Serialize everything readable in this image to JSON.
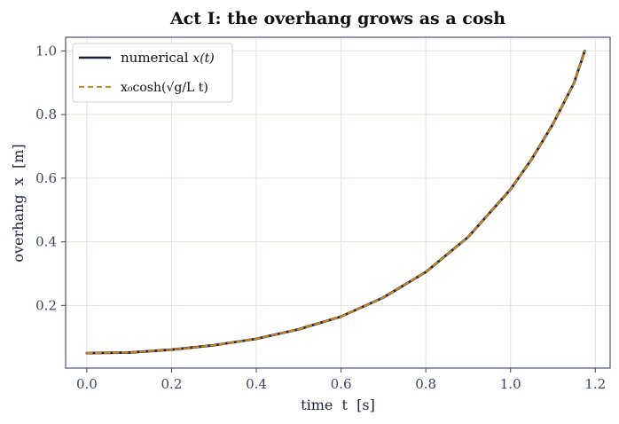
{
  "chart_data": {
    "type": "line",
    "title": "Act I: the overhang grows as a cosh",
    "xlabel": "time  t  [s]",
    "ylabel": "overhang  x  [m]",
    "xlim": [
      -0.05,
      1.235
    ],
    "ylim": [
      0.003,
      1.043
    ],
    "xticks": [
      0.0,
      0.2,
      0.4,
      0.6,
      0.8,
      1.0,
      1.2
    ],
    "xtick_labels": [
      "0.0",
      "0.2",
      "0.4",
      "0.6",
      "0.8",
      "1.0",
      "1.2"
    ],
    "yticks": [
      0.2,
      0.4,
      0.6,
      0.8,
      1.0
    ],
    "ytick_labels": [
      "0.2",
      "0.4",
      "0.6",
      "0.8",
      "1.0"
    ],
    "grid": true,
    "legend_position": "top-left",
    "x": [
      0.0,
      0.1,
      0.2,
      0.3,
      0.4,
      0.5,
      0.6,
      0.7,
      0.8,
      0.9,
      1.0,
      1.05,
      1.1,
      1.15,
      1.175
    ],
    "series": [
      {
        "name": "numerical x(t)",
        "style": "solid",
        "color": "#1a1f3c",
        "values": [
          0.05,
          0.052,
          0.061,
          0.075,
          0.095,
          0.125,
          0.165,
          0.225,
          0.305,
          0.415,
          0.565,
          0.66,
          0.77,
          0.9,
          1.0
        ]
      },
      {
        "name": "x0 cosh(√(g/L) t)",
        "style": "dashed",
        "color": "#d08a1a",
        "values": [
          0.05,
          0.052,
          0.061,
          0.075,
          0.095,
          0.125,
          0.165,
          0.225,
          0.305,
          0.415,
          0.565,
          0.66,
          0.77,
          0.9,
          1.0
        ]
      }
    ],
    "colors": {
      "frame": "#4a5275",
      "grid": "#e6e0d4",
      "ticks": "#3d4466"
    }
  },
  "legend": {
    "entry1_prefix": "numerical ",
    "entry1_math": "x(t)",
    "entry2_math": "x₀cosh(√g/L t)"
  }
}
